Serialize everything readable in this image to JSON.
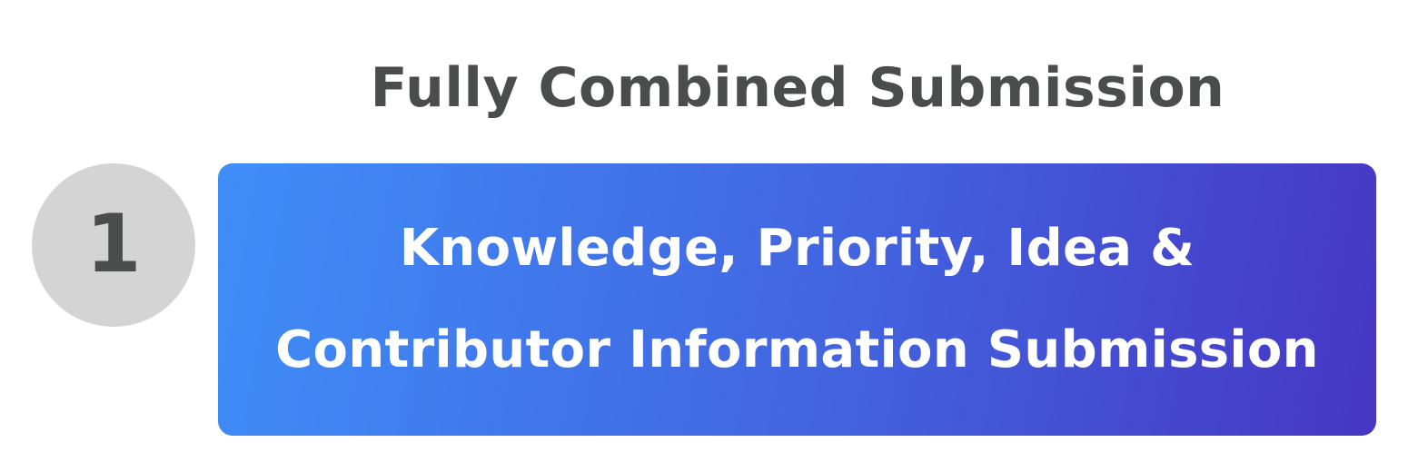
{
  "title": "Fully Combined Submission",
  "step": {
    "number": "1",
    "line1": "Knowledge, Priority, Idea &",
    "line2": "Contributor Information Submission"
  },
  "colors": {
    "title_text": "#4a4d4c",
    "badge_background": "#d4d4d4",
    "card_gradient_start": "#3f8ef8",
    "card_gradient_end": "#4636c4",
    "card_text": "#ffffff"
  }
}
